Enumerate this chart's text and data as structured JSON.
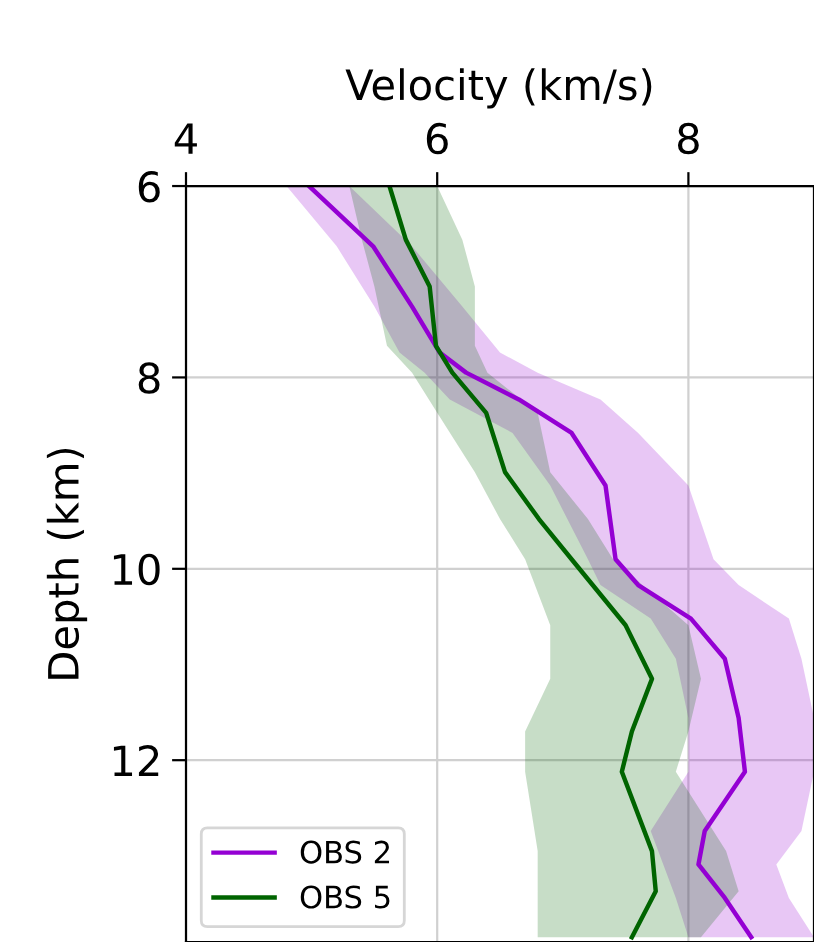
{
  "chart_data": {
    "type": "line",
    "orientation": "horizontal",
    "xlabel": "Velocity (km/s)",
    "ylabel": "Depth (km)",
    "xlim": [
      4,
      9
    ],
    "xticks": [
      4,
      6,
      8
    ],
    "ylim": [
      13.9,
      6
    ],
    "yticks": [
      6,
      8,
      10,
      12
    ],
    "grid": true,
    "legend": "bottom left",
    "series": [
      {
        "name": "OBS 2",
        "color": "#9400d3",
        "x": [
          6.0,
          6.63,
          7.26,
          7.74,
          7.95,
          8.23,
          8.58,
          9.13,
          9.9,
          10.17,
          10.52,
          10.94,
          11.56,
          12.12,
          12.74,
          13.09,
          13.44,
          13.85
        ],
        "values": [
          4.98,
          5.49,
          5.8,
          6.02,
          6.23,
          6.65,
          7.07,
          7.34,
          7.42,
          7.6,
          8.02,
          8.29,
          8.4,
          8.45,
          8.13,
          8.08,
          8.29,
          8.5
        ],
        "lower": [
          4.8,
          5.2,
          5.5,
          5.7,
          5.9,
          6.1,
          6.6,
          6.9,
          7.2,
          7.3,
          7.7,
          7.9,
          8.0,
          8.0,
          7.7,
          7.8,
          7.9,
          8.0
        ],
        "upper": [
          5.3,
          5.8,
          6.2,
          6.5,
          6.8,
          7.3,
          7.6,
          8.0,
          8.2,
          8.4,
          8.8,
          8.9,
          9.0,
          9.0,
          8.9,
          8.7,
          8.8,
          9.0
        ]
      },
      {
        "name": "OBS 5",
        "color": "#006400",
        "x": [
          6.0,
          6.56,
          7.05,
          7.67,
          7.95,
          8.37,
          8.99,
          9.48,
          9.9,
          10.59,
          11.15,
          11.7,
          12.12,
          12.95,
          13.37,
          13.85
        ],
        "values": [
          5.62,
          5.75,
          5.94,
          5.99,
          6.12,
          6.39,
          6.54,
          6.81,
          7.07,
          7.5,
          7.71,
          7.55,
          7.47,
          7.71,
          7.74,
          7.55
        ],
        "lower": [
          5.3,
          5.4,
          5.5,
          5.6,
          5.8,
          6.0,
          6.3,
          6.5,
          6.7,
          6.9,
          6.9,
          6.7,
          6.7,
          6.8,
          6.8,
          6.8
        ],
        "upper": [
          6.0,
          6.2,
          6.3,
          6.3,
          6.4,
          6.8,
          6.9,
          7.2,
          7.4,
          8.0,
          8.1,
          8.0,
          7.9,
          8.3,
          8.4,
          8.1
        ]
      }
    ]
  }
}
